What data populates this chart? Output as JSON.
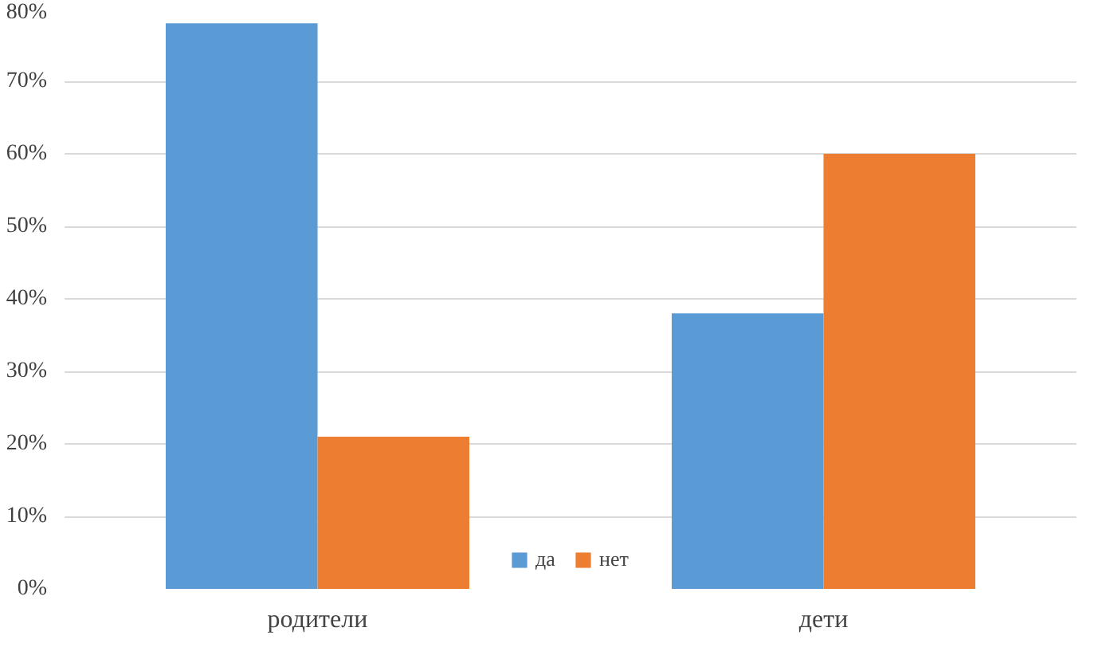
{
  "chart_data": {
    "type": "bar",
    "categories": [
      "родители",
      "дети"
    ],
    "series": [
      {
        "name": "да",
        "color": "#5b9bd5",
        "values": [
          78,
          38
        ]
      },
      {
        "name": "нет",
        "color": "#ed7d31",
        "values": [
          21,
          60
        ]
      }
    ],
    "ylim": [
      0,
      80
    ],
    "yticks": [
      {
        "value": 0,
        "label": "0%"
      },
      {
        "value": 10,
        "label": "10%"
      },
      {
        "value": 20,
        "label": "20%"
      },
      {
        "value": 30,
        "label": "30%"
      },
      {
        "value": 40,
        "label": "40%"
      },
      {
        "value": 50,
        "label": "50%"
      },
      {
        "value": 60,
        "label": "60%"
      },
      {
        "value": 70,
        "label": "70%"
      },
      {
        "value": 80,
        "label": "80%"
      }
    ],
    "grid": "y",
    "legend": "bottom"
  }
}
